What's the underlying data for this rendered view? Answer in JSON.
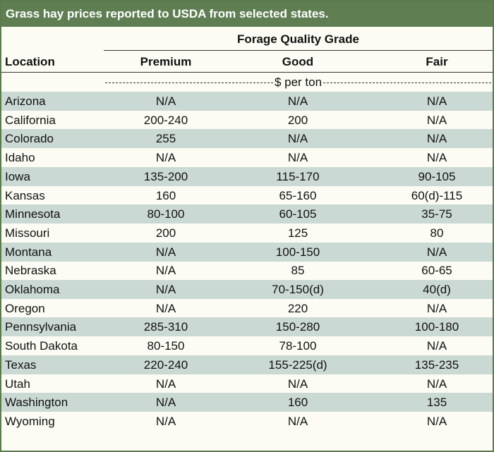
{
  "title": "Grass hay prices reported to USDA from selected states.",
  "header": {
    "group": "Forage Quality Grade",
    "columns": [
      "Location",
      "Premium",
      "Good",
      "Fair"
    ],
    "unit": "$ per ton"
  },
  "table": {
    "rows": [
      [
        "Arizona",
        "N/A",
        "N/A",
        "N/A"
      ],
      [
        "California",
        "200-240",
        "200",
        "N/A"
      ],
      [
        "Colorado",
        "255",
        "N/A",
        "N/A"
      ],
      [
        "Idaho",
        "N/A",
        "N/A",
        "N/A"
      ],
      [
        "Iowa",
        "135-200",
        "115-170",
        "90-105"
      ],
      [
        "Kansas",
        "160",
        "65-160",
        "60(d)-115"
      ],
      [
        "Minnesota",
        "80-100",
        "60-105",
        "35-75"
      ],
      [
        "Missouri",
        "200",
        "125",
        "80"
      ],
      [
        "Montana",
        "N/A",
        "100-150",
        "N/A"
      ],
      [
        "Nebraska",
        "N/A",
        "85",
        "60-65"
      ],
      [
        "Oklahoma",
        "N/A",
        "70-150(d)",
        "40(d)"
      ],
      [
        "Oregon",
        "N/A",
        "220",
        "N/A"
      ],
      [
        "Pennsylvania",
        "285-310",
        "150-280",
        "100-180"
      ],
      [
        "South Dakota",
        "80-150",
        "78-100",
        "N/A"
      ],
      [
        "Texas",
        "220-240",
        "155-225(d)",
        "135-235"
      ],
      [
        "Utah",
        "N/A",
        "N/A",
        "N/A"
      ],
      [
        "Washington",
        "N/A",
        "160",
        "135"
      ],
      [
        "Wyoming",
        "N/A",
        "N/A",
        "N/A"
      ]
    ]
  }
}
